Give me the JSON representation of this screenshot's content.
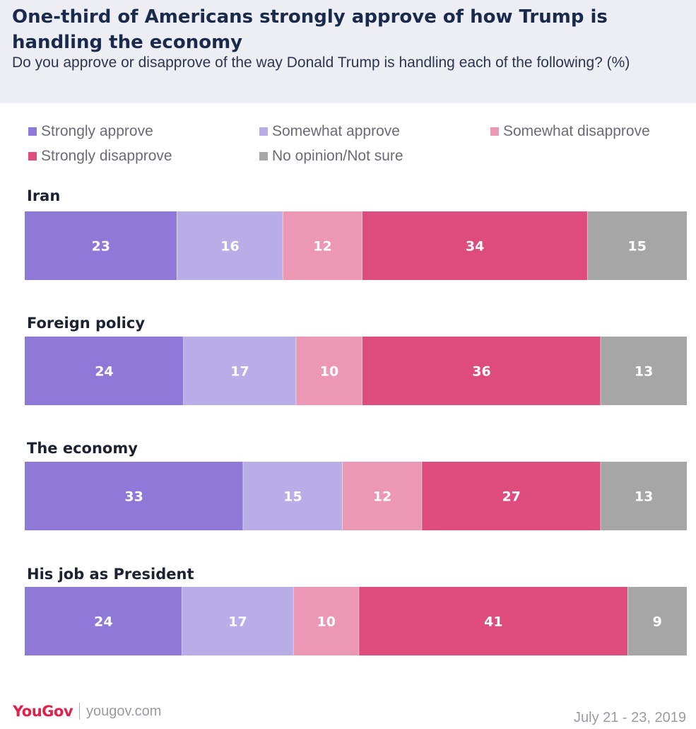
{
  "header": {
    "title": "One-third of Americans strongly approve of how Trump is handling the economy",
    "subtitle": "Do you approve or disapprove of the way Donald Trump is handling each of the following? (%)"
  },
  "legend": [
    {
      "label": "Strongly approve",
      "color": "#8e79d9"
    },
    {
      "label": "Somewhat approve",
      "color": "#b9ade8"
    },
    {
      "label": "Somewhat disapprove",
      "color": "#ec97b4"
    },
    {
      "label": "Strongly disapprove",
      "color": "#de4c7e"
    },
    {
      "label": "No opinion/Not sure",
      "color": "#a6a6a6"
    }
  ],
  "chart_data": {
    "type": "bar",
    "orientation": "horizontal",
    "stacked": true,
    "unit": "%",
    "title": "One-third of Americans strongly approve of how Trump is handling the economy",
    "subtitle": "Do you approve or disapprove of the way Donald Trump is handling each of the following? (%)",
    "categories": [
      "Iran",
      "Foreign policy",
      "The economy",
      "His job as President"
    ],
    "series": [
      {
        "name": "Strongly approve",
        "color": "#8e79d9",
        "values": [
          23,
          24,
          33,
          24
        ]
      },
      {
        "name": "Somewhat approve",
        "color": "#b9ade8",
        "values": [
          16,
          17,
          15,
          17
        ]
      },
      {
        "name": "Somewhat disapprove",
        "color": "#ec97b4",
        "values": [
          12,
          10,
          12,
          10
        ]
      },
      {
        "name": "Strongly disapprove",
        "color": "#de4c7e",
        "values": [
          34,
          36,
          27,
          41
        ]
      },
      {
        "name": "No opinion/Not sure",
        "color": "#a6a6a6",
        "values": [
          15,
          13,
          13,
          9
        ]
      }
    ],
    "xlim": [
      0,
      100
    ],
    "grid": false,
    "legend_position": "top"
  },
  "footer": {
    "brand": "YouGov",
    "url": "yougov.com",
    "date": "July 21 - 23, 2019"
  }
}
